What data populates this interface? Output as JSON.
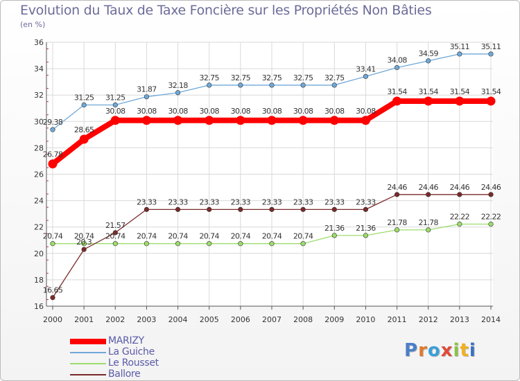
{
  "chart_data": {
    "type": "line",
    "title": "Evolution du Taux de Taxe Foncière sur les Propriétés Non Bâties",
    "ylabel": "(en %)",
    "xlabel": "",
    "ylim": [
      16,
      36
    ],
    "yticks": [
      16,
      18,
      20,
      22,
      24,
      26,
      28,
      30,
      32,
      34,
      36
    ],
    "grid": true,
    "categories": [
      "2000",
      "2001",
      "2002",
      "2003",
      "2004",
      "2005",
      "2006",
      "2007",
      "2008",
      "2009",
      "2010",
      "2011",
      "2012",
      "2013",
      "2014"
    ],
    "series": [
      {
        "name": "MARIZY",
        "color": "#ff0000",
        "thick": true,
        "values": [
          26.78,
          28.65,
          30.08,
          30.08,
          30.08,
          30.08,
          30.08,
          30.08,
          30.08,
          30.08,
          30.08,
          31.54,
          31.54,
          31.54,
          31.54
        ],
        "labels": [
          "26.78",
          "28.65",
          "30.08",
          "30.08",
          "30.08",
          "30.08",
          "30.08",
          "30.08",
          "30.08",
          "30.08",
          "30.08",
          "31.54",
          "31.54",
          "31.54",
          "31.54"
        ]
      },
      {
        "name": "La Guiche",
        "color": "#6fa8d8",
        "thick": false,
        "values": [
          29.38,
          31.25,
          31.25,
          31.87,
          32.18,
          32.75,
          32.75,
          32.75,
          32.75,
          32.75,
          33.41,
          34.08,
          34.59,
          35.11,
          35.11
        ],
        "labels": [
          "29.38",
          "31.25",
          "31.25",
          "31.87",
          "32.18",
          "32.75",
          "32.75",
          "32.75",
          "32.75",
          "32.75",
          "33.41",
          "34.08",
          "34.59",
          "35.11",
          "35.11"
        ]
      },
      {
        "name": "Le Rousset",
        "color": "#9ddc6c",
        "thick": false,
        "values": [
          20.74,
          20.74,
          20.74,
          20.74,
          20.74,
          20.74,
          20.74,
          20.74,
          20.74,
          21.36,
          21.36,
          21.78,
          21.78,
          22.22,
          22.22
        ],
        "labels": [
          "20.74",
          "20.74",
          "20.74",
          "20.74",
          "20.74",
          "20.74",
          "20.74",
          "20.74",
          "20.74",
          "21.36",
          "21.36",
          "21.78",
          "21.78",
          "22.22",
          "22.22"
        ]
      },
      {
        "name": "Ballore",
        "color": "#7a2a2a",
        "thick": false,
        "values": [
          16.65,
          20.3,
          21.57,
          23.33,
          23.33,
          23.33,
          23.33,
          23.33,
          23.33,
          23.33,
          23.33,
          24.46,
          24.46,
          24.46,
          24.46
        ],
        "labels": [
          "16.65",
          "20.3",
          "21.57",
          "23.33",
          "23.33",
          "23.33",
          "23.33",
          "23.33",
          "23.33",
          "23.33",
          "23.33",
          "24.46",
          "24.46",
          "24.46",
          "24.46"
        ]
      }
    ]
  },
  "logo": {
    "text": "Proxiti",
    "letter_colors": [
      "#4a7fc8",
      "#e07a2a",
      "#3aa0d8",
      "#e04a3a",
      "#8bc34a",
      "#f0b020",
      "#3a70c0"
    ]
  }
}
